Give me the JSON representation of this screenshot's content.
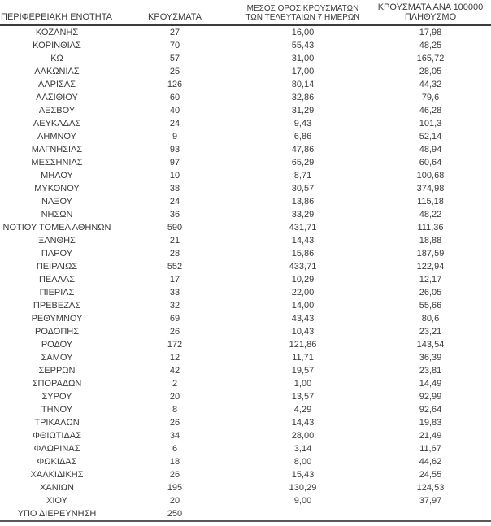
{
  "chart_data": {
    "type": "table",
    "columns": [
      "ΠΕΡΙΦΕΡΕΙΑΚΗ ΕΝΟΤΗΤΑ",
      "ΚΡΟΥΣΜΑΤΑ",
      "ΜΕΣΟΣ ΟΡΟΣ ΚΡΟΥΣΜΑΤΩΝ ΤΩΝ ΤΕΛΕΥΤΑΙΩΝ 7 ΗΜΕΡΩΝ",
      "ΚΡΟΥΣΜΑΤΑ ΑΝΑ 100000 ΠΛΗΘΥΣΜΟ"
    ],
    "rows": [
      [
        "ΚΟΖΑΝΗΣ",
        "27",
        "16,00",
        "17,98"
      ],
      [
        "ΚΟΡΙΝΘΙΑΣ",
        "70",
        "55,43",
        "48,25"
      ],
      [
        "ΚΩ",
        "57",
        "31,00",
        "165,72"
      ],
      [
        "ΛΑΚΩΝΙΑΣ",
        "25",
        "17,00",
        "28,05"
      ],
      [
        "ΛΑΡΙΣΑΣ",
        "126",
        "80,14",
        "44,32"
      ],
      [
        "ΛΑΣΙΘΙΟΥ",
        "60",
        "32,86",
        "79,6"
      ],
      [
        "ΛΕΣΒΟΥ",
        "40",
        "31,29",
        "46,28"
      ],
      [
        "ΛΕΥΚΑΔΑΣ",
        "24",
        "9,43",
        "101,3"
      ],
      [
        "ΛΗΜΝΟΥ",
        "9",
        "6,86",
        "52,14"
      ],
      [
        "ΜΑΓΝΗΣΙΑΣ",
        "93",
        "47,86",
        "48,94"
      ],
      [
        "ΜΕΣΣΗΝΙΑΣ",
        "97",
        "65,29",
        "60,64"
      ],
      [
        "ΜΗΛΟΥ",
        "10",
        "8,71",
        "100,68"
      ],
      [
        "ΜΥΚΟΝΟΥ",
        "38",
        "30,57",
        "374,98"
      ],
      [
        "ΝΑΞΟΥ",
        "24",
        "13,86",
        "115,18"
      ],
      [
        "ΝΗΣΩΝ",
        "36",
        "33,29",
        "48,22"
      ],
      [
        "ΝΟΤΙΟΥ ΤΟΜΕΑ ΑΘΗΝΩΝ",
        "590",
        "431,71",
        "111,36"
      ],
      [
        "ΞΑΝΘΗΣ",
        "21",
        "14,43",
        "18,88"
      ],
      [
        "ΠΑΡΟΥ",
        "28",
        "15,86",
        "187,59"
      ],
      [
        "ΠΕΙΡΑΙΩΣ",
        "552",
        "433,71",
        "122,94"
      ],
      [
        "ΠΕΛΛΑΣ",
        "17",
        "10,29",
        "12,17"
      ],
      [
        "ΠΙΕΡΙΑΣ",
        "33",
        "22,00",
        "26,05"
      ],
      [
        "ΠΡΕΒΕΖΑΣ",
        "32",
        "14,00",
        "55,66"
      ],
      [
        "ΡΕΘΥΜΝΟΥ",
        "69",
        "43,43",
        "80,6"
      ],
      [
        "ΡΟΔΟΠΗΣ",
        "26",
        "10,43",
        "23,21"
      ],
      [
        "ΡΟΔΟΥ",
        "172",
        "121,86",
        "143,54"
      ],
      [
        "ΣΑΜΟΥ",
        "12",
        "11,71",
        "36,39"
      ],
      [
        "ΣΕΡΡΩΝ",
        "42",
        "19,57",
        "23,81"
      ],
      [
        "ΣΠΟΡΑΔΩΝ",
        "2",
        "1,00",
        "14,49"
      ],
      [
        "ΣΥΡΟΥ",
        "20",
        "13,57",
        "92,99"
      ],
      [
        "ΤΗΝΟΥ",
        "8",
        "4,29",
        "92,64"
      ],
      [
        "ΤΡΙΚΑΛΩΝ",
        "26",
        "14,43",
        "19,83"
      ],
      [
        "ΦΘΙΩΤΙΔΑΣ",
        "34",
        "28,00",
        "21,49"
      ],
      [
        "ΦΛΩΡΙΝΑΣ",
        "6",
        "3,14",
        "11,67"
      ],
      [
        "ΦΩΚΙΔΑΣ",
        "18",
        "8,00",
        "44,62"
      ],
      [
        "ΧΑΛΚΙΔΙΚΗΣ",
        "26",
        "15,43",
        "24,55"
      ],
      [
        "ΧΑΝΙΩΝ",
        "195",
        "130,29",
        "124,53"
      ],
      [
        "ΧΙΟΥ",
        "20",
        "9,00",
        "37,97"
      ],
      [
        "ΥΠΟ ΔΙΕΡΕΥΝΗΣΗ",
        "250",
        "",
        ""
      ]
    ]
  },
  "colors": {
    "text": "#3b3b3b",
    "header_border": "#3c3c3c",
    "bottom_border": "#595959"
  }
}
